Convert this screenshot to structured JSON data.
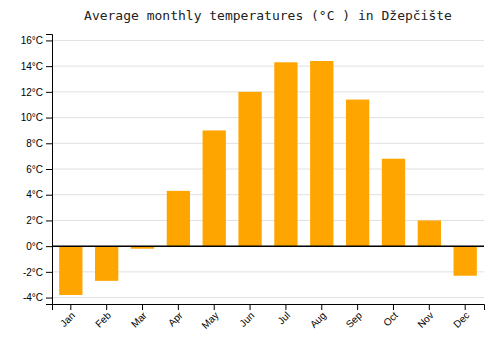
{
  "chart_data": {
    "type": "bar",
    "title": "Average monthly temperatures (°C ) in Džepčište",
    "categories": [
      "Jan",
      "Feb",
      "Mar",
      "Apr",
      "May",
      "Jun",
      "Jul",
      "Aug",
      "Sep",
      "Oct",
      "Nov",
      "Dec"
    ],
    "values": [
      -3.8,
      -2.7,
      -0.2,
      4.3,
      9.0,
      12.0,
      14.3,
      14.4,
      11.4,
      6.8,
      2.0,
      -2.3
    ],
    "color": "#FFA500",
    "ylim": [
      -4.5,
      16.5
    ],
    "yticks": [
      {
        "value": -4,
        "label": "-4°C"
      },
      {
        "value": -2,
        "label": "-2°C"
      },
      {
        "value": 0,
        "label": "0°C"
      },
      {
        "value": 2,
        "label": "2°C"
      },
      {
        "value": 4,
        "label": "4°C"
      },
      {
        "value": 6,
        "label": "6°C"
      },
      {
        "value": 8,
        "label": "8°C"
      },
      {
        "value": 10,
        "label": "10°C"
      },
      {
        "value": 12,
        "label": "12°C"
      },
      {
        "value": 14,
        "label": "14°C"
      },
      {
        "value": 16,
        "label": "16°C"
      }
    ],
    "grid": true
  }
}
